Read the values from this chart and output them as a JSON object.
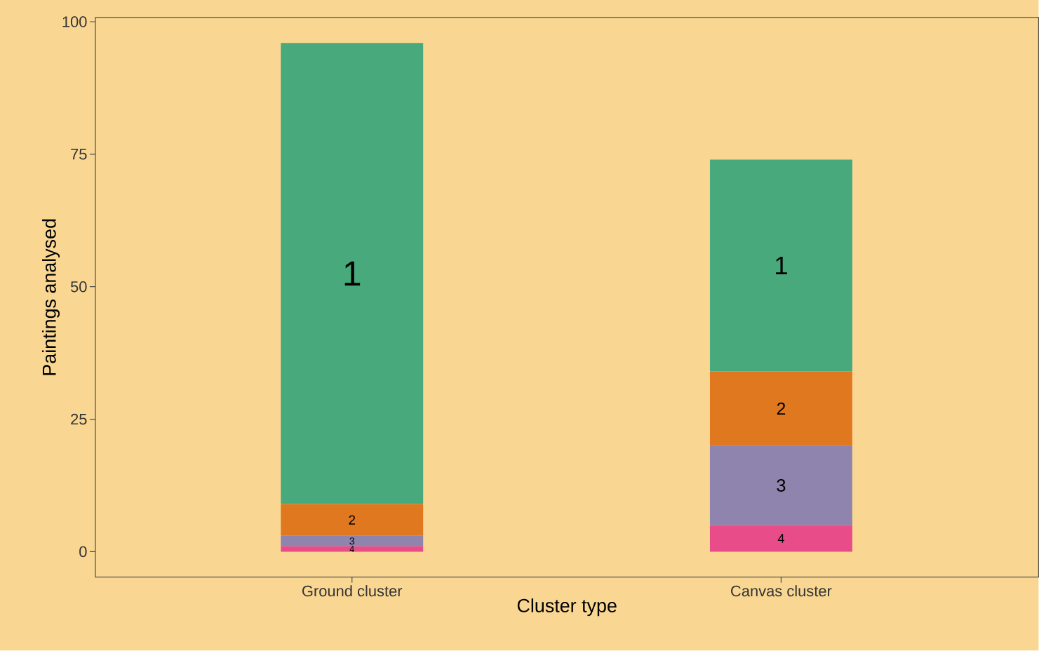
{
  "chart_data": {
    "type": "bar",
    "stacked": true,
    "xlabel": "Cluster type",
    "ylabel": "Paintings analysed",
    "categories": [
      "Ground cluster",
      "Canvas cluster"
    ],
    "series": [
      {
        "name": "4",
        "color": "#e84d8a",
        "values": [
          1,
          5
        ]
      },
      {
        "name": "3",
        "color": "#8e84ad",
        "values": [
          2,
          15
        ]
      },
      {
        "name": "2",
        "color": "#e07820",
        "values": [
          6,
          14
        ]
      },
      {
        "name": "1",
        "color": "#48a97c",
        "values": [
          87,
          40
        ]
      }
    ],
    "ylim": [
      -4.8,
      100.8
    ],
    "yticks": [
      0,
      25,
      50,
      75,
      100
    ],
    "grid": false
  }
}
